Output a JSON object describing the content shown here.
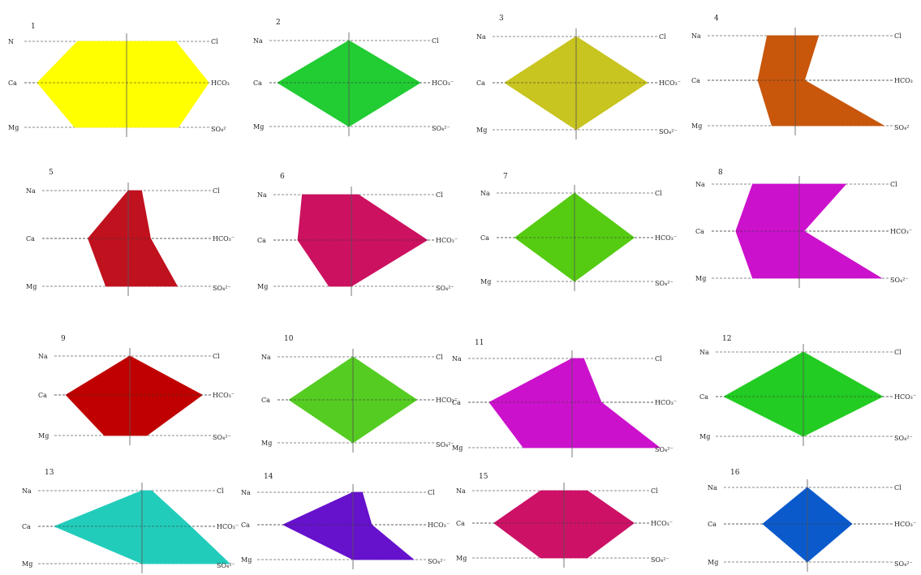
{
  "panels": [
    {
      "number": "1",
      "color": "#ffff00",
      "labels": {
        "na": "N",
        "ca": "Ca",
        "mg": "Mg",
        "cl": "Cl",
        "hco3": "HCO₃",
        "so4": "SO₄²"
      },
      "scale": {
        "na": 0.55,
        "ca": 1.0,
        "mg": 0.58,
        "cl": 0.55,
        "hco3": 0.92,
        "so4": 0.58
      }
    },
    {
      "number": "2",
      "color": "#22cc33",
      "labels": {
        "na": "Na",
        "ca": "Ca",
        "mg": "Mg",
        "cl": "Cl",
        "hco3": "HCO₃⁻",
        "so4": "SO₄²⁻"
      },
      "scale": {
        "na": 0.0,
        "ca": 0.8,
        "mg": 0.0,
        "cl": 0.0,
        "hco3": 0.8,
        "so4": 0.0
      }
    },
    {
      "number": "3",
      "color": "#c8c420",
      "labels": {
        "na": "Na",
        "ca": "Ca",
        "mg": "Mg",
        "cl": "Cl",
        "hco3": "HCO₃⁻",
        "so4": "SO₄²⁻"
      },
      "scale": {
        "na": 0.0,
        "ca": 0.8,
        "mg": 0.0,
        "cl": 0.0,
        "hco3": 0.8,
        "so4": 0.0
      }
    },
    {
      "number": "4",
      "color": "#c8560b",
      "labels": {
        "na": "Na",
        "ca": "Ca",
        "mg": "Mg",
        "cl": "Cl",
        "hco3": "HCO₃",
        "so4": "SO₄²"
      },
      "scale": {
        "na": 0.3,
        "ca": 0.4,
        "mg": 0.25,
        "cl": 0.25,
        "hco3": 0.1,
        "so4": 0.95
      }
    },
    {
      "number": "5",
      "color": "#c0111e",
      "labels": {
        "na": "Na",
        "ca": "Ca",
        "mg": "Mg",
        "cl": "Cl",
        "hco3": "HCO₃⁻",
        "so4": "SO₄²⁻"
      },
      "scale": {
        "na": 0.0,
        "ca": 0.45,
        "mg": 0.25,
        "cl": 0.15,
        "hco3": 0.25,
        "so4": 0.55
      }
    },
    {
      "number": "6",
      "color": "#cc1160",
      "labels": {
        "na": "Na",
        "ca": "Ca",
        "mg": "Mg",
        "cl": "Cl",
        "hco3": "HCO₃⁻",
        "so4": "SO₄²⁻"
      },
      "scale": {
        "na": 0.55,
        "ca": 0.6,
        "mg": 0.25,
        "cl": 0.08,
        "hco3": 0.85,
        "so4": 0.0
      }
    },
    {
      "number": "7",
      "color": "#55cc11",
      "labels": {
        "na": "Na",
        "ca": "Ca",
        "mg": "Mg",
        "cl": "Cl",
        "hco3": "HCO₃⁻",
        "so4": "SO₄²⁻"
      },
      "scale": {
        "na": 0.0,
        "ca": 0.7,
        "mg": 0.0,
        "cl": 0.0,
        "hco3": 0.7,
        "so4": 0.0
      }
    },
    {
      "number": "8",
      "color": "#cc11cc",
      "labels": {
        "na": "Na",
        "ca": "Ca",
        "mg": "Mg",
        "cl": "Cl",
        "hco3": "HCO₃⁻",
        "so4": "SO₄²⁻"
      },
      "scale": {
        "na": 0.5,
        "ca": 0.68,
        "mg": 0.5,
        "cl": 0.5,
        "hco3": 0.05,
        "so4": 0.88
      }
    },
    {
      "number": "9",
      "color": "#c00000",
      "labels": {
        "na": "Na",
        "ca": "Ca",
        "mg": "Mg",
        "cl": "Cl",
        "hco3": "HCO₃⁻",
        "so4": "SO₄²⁻"
      },
      "scale": {
        "na": 0.0,
        "ca": 0.75,
        "mg": 0.3,
        "cl": 0.0,
        "hco3": 0.85,
        "so4": 0.2
      }
    },
    {
      "number": "10",
      "color": "#55cc22",
      "labels": {
        "na": "Na",
        "ca": "Ca",
        "mg": "Mg",
        "cl": "Cl",
        "hco3": "HCO₃⁻",
        "so4": "SO₄²⁻"
      },
      "scale": {
        "na": 0.0,
        "ca": 0.75,
        "mg": 0.0,
        "cl": 0.0,
        "hco3": 0.75,
        "so4": 0.0
      }
    },
    {
      "number": "11",
      "color": "#cc11cc",
      "labels": {
        "na": "Na",
        "ca": "Ca",
        "mg": "Mg",
        "cl": "Cl",
        "hco3": "HCO₃⁻",
        "so4": "SO₄²⁻"
      },
      "scale": {
        "na": 0.0,
        "ca": 0.85,
        "mg": 0.5,
        "cl": 0.12,
        "hco3": 0.3,
        "so4": 0.9
      }
    },
    {
      "number": "12",
      "color": "#22cc22",
      "labels": {
        "na": "Na",
        "ca": "Ca",
        "mg": "Mg",
        "cl": "Cl",
        "hco3": "HCO₃⁻",
        "so4": "SO₄²⁻"
      },
      "scale": {
        "na": 0.0,
        "ca": 0.85,
        "mg": 0.0,
        "cl": 0.0,
        "hco3": 0.85,
        "so4": 0.0
      }
    },
    {
      "number": "13",
      "color": "#22ccbb",
      "labels": {
        "na": "Na",
        "ca": "Ca",
        "mg": "Mg",
        "cl": "Cl",
        "hco3": "HCO₃⁻",
        "so4": "SO₄²⁻"
      },
      "scale": {
        "na": 0.0,
        "ca": 0.9,
        "mg": 0.0,
        "cl": 0.1,
        "hco3": 0.5,
        "so4": 0.9
      }
    },
    {
      "number": "14",
      "color": "#6611cc",
      "labels": {
        "na": "Na",
        "ca": "Ca",
        "mg": "Mg",
        "cl": "Cl",
        "hco3": "HCO₃⁻",
        "so4": "SO₄²⁻"
      },
      "scale": {
        "na": 0.0,
        "ca": 0.75,
        "mg": 0.0,
        "cl": 0.1,
        "hco3": 0.2,
        "so4": 0.65
      }
    },
    {
      "number": "15",
      "color": "#cc1166",
      "labels": {
        "na": "Na",
        "ca": "Ca",
        "mg": "Mg",
        "cl": "Cl",
        "hco3": "HCO₃⁻",
        "so4": "SO₄²⁻"
      },
      "scale": {
        "na": 0.25,
        "ca": 0.75,
        "mg": 0.25,
        "cl": 0.25,
        "hco3": 0.75,
        "so4": 0.25
      }
    },
    {
      "number": "16",
      "color": "#0b5acc",
      "labels": {
        "na": "Na",
        "ca": "Ca",
        "mg": "Mg",
        "cl": "Cl",
        "hco3": "HCO₃⁻",
        "so4": "SO₄²⁻"
      },
      "scale": {
        "na": 0.0,
        "ca": 0.55,
        "mg": 0.0,
        "cl": 0.0,
        "hco3": 0.55,
        "so4": 0.0
      }
    }
  ]
}
